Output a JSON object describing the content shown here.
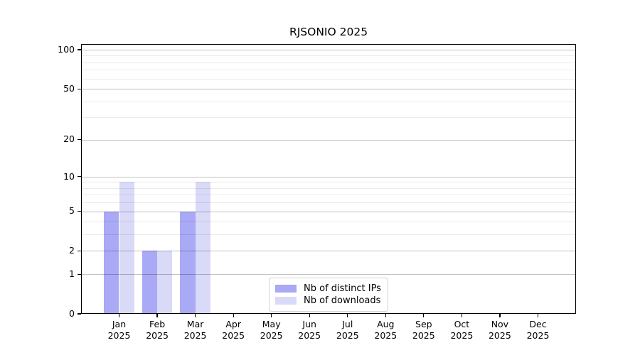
{
  "chart_data": {
    "type": "bar",
    "title": "RJSONIO 2025",
    "x_tick_labels": [
      [
        "Jan",
        "2025"
      ],
      [
        "Feb",
        "2025"
      ],
      [
        "Mar",
        "2025"
      ],
      [
        "Apr",
        "2025"
      ],
      [
        "May",
        "2025"
      ],
      [
        "Jun",
        "2025"
      ],
      [
        "Jul",
        "2025"
      ],
      [
        "Aug",
        "2025"
      ],
      [
        "Sep",
        "2025"
      ],
      [
        "Oct",
        "2025"
      ],
      [
        "Nov",
        "2025"
      ],
      [
        "Dec",
        "2025"
      ]
    ],
    "series": [
      {
        "name": "Nb of distinct IPs",
        "color": "#a9a9f5",
        "values": [
          5,
          2,
          5,
          0,
          0,
          0,
          0,
          0,
          0,
          0,
          0,
          0
        ]
      },
      {
        "name": "Nb of downloads",
        "color": "#d9d9f8",
        "values": [
          9,
          2,
          9,
          0,
          0,
          0,
          0,
          0,
          0,
          0,
          0,
          0
        ]
      }
    ],
    "yscale": "log1p",
    "ylim": [
      0,
      110.5
    ],
    "yticks": [
      0,
      1,
      2,
      5,
      10,
      20,
      50,
      100
    ],
    "yticks_minor": [
      3,
      4,
      6,
      7,
      8,
      9,
      30,
      40,
      60,
      70,
      80,
      90
    ],
    "grid": true,
    "legend_position": "lower center"
  },
  "colors": {
    "background": "#ffffff",
    "spine": "#000000",
    "bar_distinct_ips": "#a9a9f5",
    "bar_downloads": "#d9d9f8",
    "legend_border": "#d2d2d2"
  }
}
